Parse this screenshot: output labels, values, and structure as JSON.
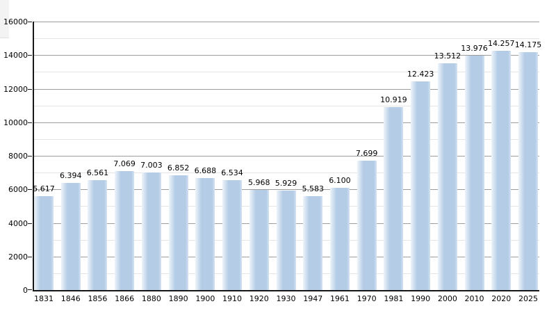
{
  "chart_data": {
    "type": "bar",
    "title": "",
    "xlabel": "",
    "ylabel": "",
    "categories": [
      "1831",
      "1846",
      "1856",
      "1866",
      "1880",
      "1890",
      "1900",
      "1910",
      "1920",
      "1930",
      "1947",
      "1961",
      "1970",
      "1981",
      "1990",
      "2000",
      "2010",
      "2020",
      "2025"
    ],
    "values": [
      5617,
      6394,
      6561,
      7069,
      7003,
      6852,
      6688,
      6534,
      5968,
      5929,
      5583,
      6100,
      7699,
      10919,
      12423,
      13512,
      13976,
      14257,
      14175
    ],
    "value_labels": [
      "5.617",
      "6.394",
      "6.561",
      "7.069",
      "7.003",
      "6.852",
      "6.688",
      "6.534",
      "5.968",
      "5.929",
      "5.583",
      "6.100",
      "7.699",
      "10.919",
      "12.423",
      "13.512",
      "13.976",
      "14.257",
      "14.175"
    ],
    "ylim": [
      0,
      16000
    ],
    "y_major_step": 2000,
    "y_minor_step": 1000,
    "y_tick_labels": [
      "0",
      "2000",
      "4000",
      "6000",
      "8000",
      "10000",
      "12000",
      "14000",
      "16000"
    ],
    "grid": true,
    "legend": false,
    "colors": {
      "bar_fill": "#b4cce6",
      "bar_fade_left": "#eef4fa",
      "bar_fade_right": "#d5e3f2",
      "grid_major": "#9c9c9c",
      "grid_minor": "#e4e4e4",
      "axis": "#161616",
      "text": "#000000",
      "background": "#ffffff"
    }
  }
}
